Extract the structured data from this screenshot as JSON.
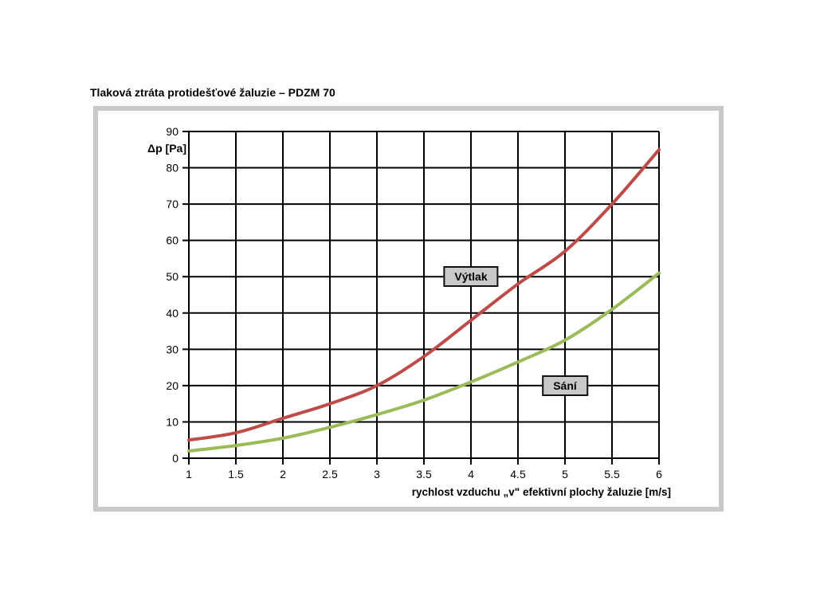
{
  "page": {
    "title": "Tlaková ztráta protidešťové žaluzie – PDZM 70"
  },
  "chart_data": {
    "type": "line",
    "title": "Tlaková ztráta protidešťové žaluzie – PDZM 70",
    "xlabel": "rychlost vzduchu „v\" efektivní plochy žaluzie [m/s]",
    "ylabel": "Δp [Pa]",
    "xlim": [
      1,
      6
    ],
    "xstep": 0.5,
    "ylim": [
      0,
      90
    ],
    "ystep": 10,
    "grid": true,
    "grid_color": "#000000",
    "legend_style": "inline-boxed-labels",
    "xticklabels": [
      "1",
      "1.5",
      "2",
      "2.5",
      "3",
      "3.5",
      "4",
      "4.5",
      "5",
      "5.5",
      "6"
    ],
    "yticklabels": [
      "0",
      "10",
      "20",
      "30",
      "40",
      "50",
      "60",
      "70",
      "80",
      "90"
    ],
    "x": [
      1,
      1.5,
      2,
      2.5,
      3,
      3.5,
      4,
      4.5,
      5,
      5.5,
      6
    ],
    "series": [
      {
        "name": "Výtlak",
        "color": "#be4b48",
        "values": [
          5,
          7,
          11,
          15,
          20,
          28,
          38,
          48,
          57,
          70,
          85
        ],
        "label_at": {
          "x": 4.0,
          "y": 50
        }
      },
      {
        "name": "Sání",
        "color": "#9bbb59",
        "values": [
          2,
          3.5,
          5.5,
          8.5,
          12,
          16,
          21,
          26.5,
          32.5,
          41,
          51
        ],
        "label_at": {
          "x": 5.0,
          "y": 20
        }
      }
    ]
  }
}
